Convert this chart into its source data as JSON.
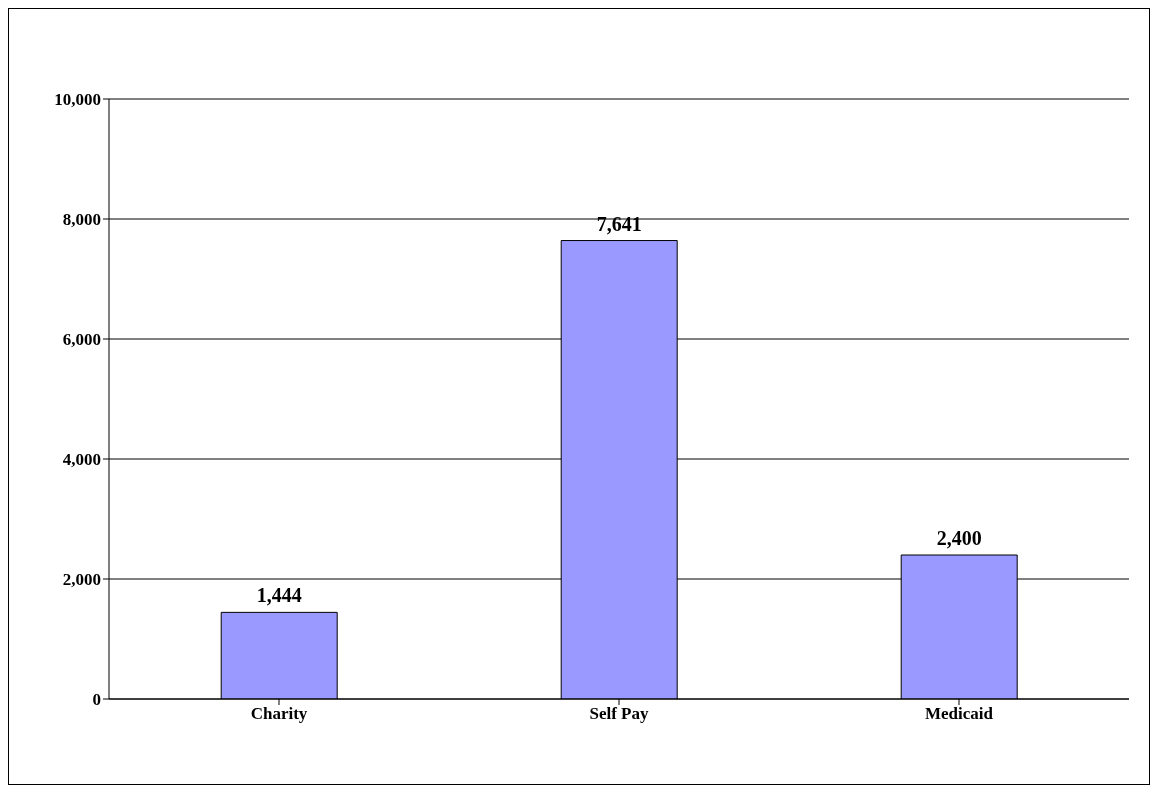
{
  "chart_data": {
    "type": "bar",
    "categories": [
      "Charity",
      "Self Pay",
      "Medicaid"
    ],
    "values": [
      1444,
      7641,
      2400
    ],
    "color": "#9999ff",
    "value_labels": [
      "1,444",
      "7,641",
      "2,400"
    ],
    "ylim": [
      0,
      10000
    ],
    "yticks": [
      {
        "value": 0,
        "label": "0"
      },
      {
        "value": 2000,
        "label": "2,000"
      },
      {
        "value": 4000,
        "label": "4,000"
      },
      {
        "value": 6000,
        "label": "6,000"
      },
      {
        "value": 8000,
        "label": "8,000"
      },
      {
        "value": 10000,
        "label": "10,000"
      }
    ],
    "grid": "y"
  }
}
